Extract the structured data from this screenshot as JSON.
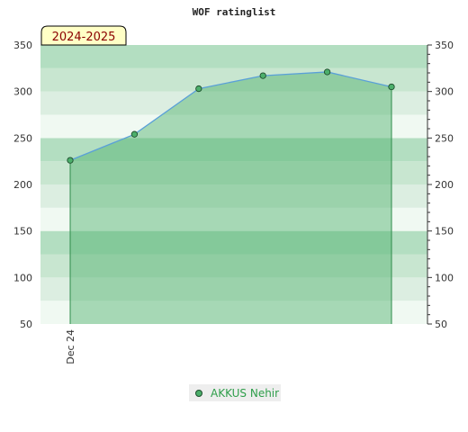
{
  "chart_data": {
    "type": "area",
    "title": "WOF ratinglist",
    "season_label": "2024-2025",
    "x": [
      "Dec 24",
      "",
      "",
      "",
      "",
      ""
    ],
    "series": [
      {
        "name": "AKKUS Nehir",
        "values": [
          226,
          254,
          303,
          317,
          321,
          305
        ]
      }
    ],
    "ylim": [
      50,
      350
    ],
    "yticks": [
      50,
      100,
      150,
      200,
      250,
      300,
      350
    ],
    "y_axis": "both sides",
    "grid": true,
    "legend": "bottom-center",
    "colors": {
      "line": "#5aa0d8",
      "fill": "#4caf6b",
      "marker": "#4caf6b",
      "legend_text": "#2e9e4a",
      "band_dark": "#b3dec1",
      "band_light": "#f0f9f2"
    }
  }
}
